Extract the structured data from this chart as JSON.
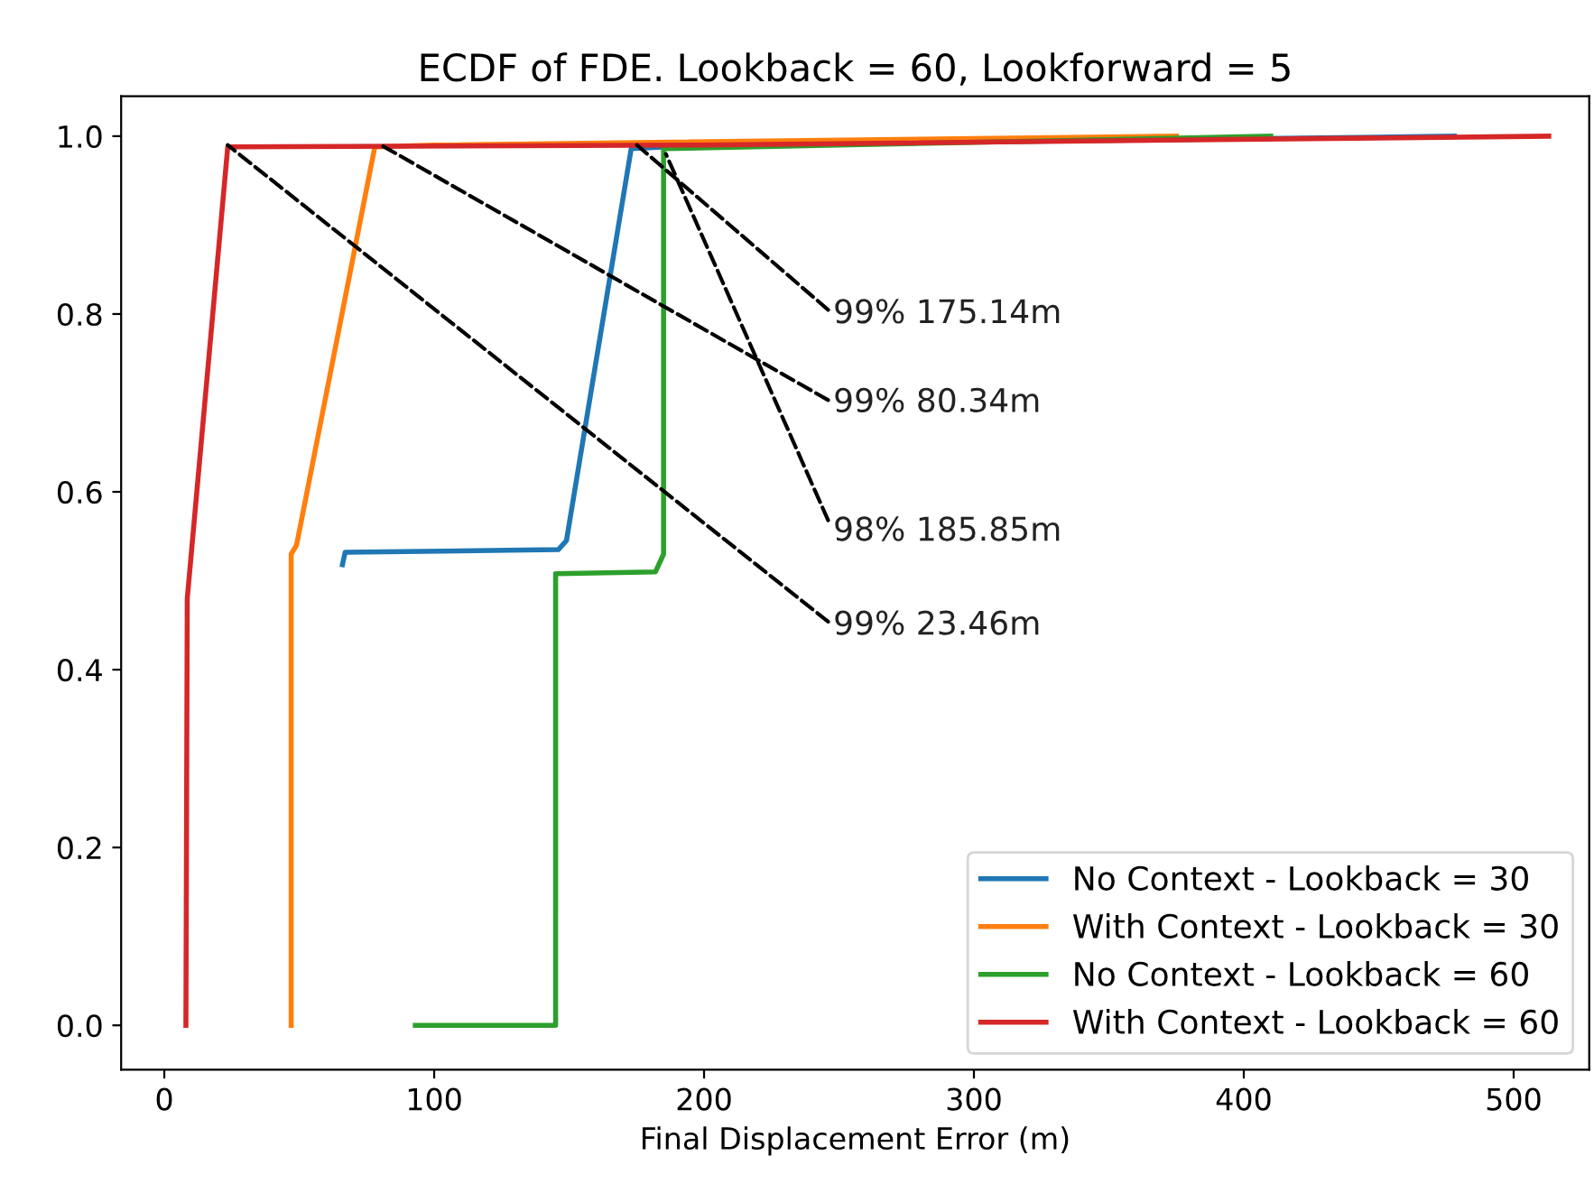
{
  "chart_data": {
    "type": "line",
    "title": "ECDF of FDE. Lookback = 60, Lookforward = 5",
    "xlabel": "Final Displacement Error (m)",
    "series": [
      {
        "name": "No Context - Lookback = 30",
        "color": "#1f77b4",
        "x": [
          66,
          67,
          146,
          149,
          173,
          200,
          478
        ],
        "values": [
          0.518,
          0.532,
          0.535,
          0.545,
          0.986,
          0.99,
          1.0
        ]
      },
      {
        "name": "With Context - Lookback = 30",
        "color": "#ff7f0e",
        "x": [
          47,
          47,
          49,
          78,
          100,
          375
        ],
        "values": [
          0,
          0.53,
          0.54,
          0.988,
          0.99,
          1.0
        ]
      },
      {
        "name": "No Context - Lookback = 60",
        "color": "#2ca02c",
        "x": [
          93,
          145,
          145,
          182,
          185,
          185,
          250,
          410
        ],
        "values": [
          0,
          0,
          0.508,
          0.51,
          0.53,
          0.986,
          0.99,
          1.0
        ]
      },
      {
        "name": "With Context - Lookback = 60",
        "color": "#d62728",
        "x": [
          8,
          8.5,
          23.5,
          200,
          513
        ],
        "values": [
          0,
          0.48,
          0.988,
          0.99,
          1.0
        ]
      }
    ],
    "annotations": [
      {
        "text": "99% 175.14m",
        "x": 175.14,
        "y": 0.99
      },
      {
        "text": "99% 80.34m",
        "x": 80.34,
        "y": 0.99
      },
      {
        "text": "98% 185.85m",
        "x": 185.85,
        "y": 0.98
      },
      {
        "text": "99% 23.46m",
        "x": 23.46,
        "y": 0.99
      }
    ],
    "xlim": [
      -16,
      528
    ],
    "ylim": [
      -0.05,
      1.045
    ],
    "xticks": [
      0,
      100,
      200,
      300,
      400,
      500
    ],
    "yticks": [
      {
        "value": 0,
        "label": "0.0"
      },
      {
        "value": 0.2,
        "label": "0.2"
      },
      {
        "value": 0.4,
        "label": "0.4"
      },
      {
        "value": 0.6,
        "label": "0.6"
      },
      {
        "value": 0.8,
        "label": "0.8"
      },
      {
        "value": 1.0,
        "label": "1.0"
      }
    ],
    "legend": "lower right",
    "grid": false,
    "marker": "none",
    "line_style": "solid"
  }
}
